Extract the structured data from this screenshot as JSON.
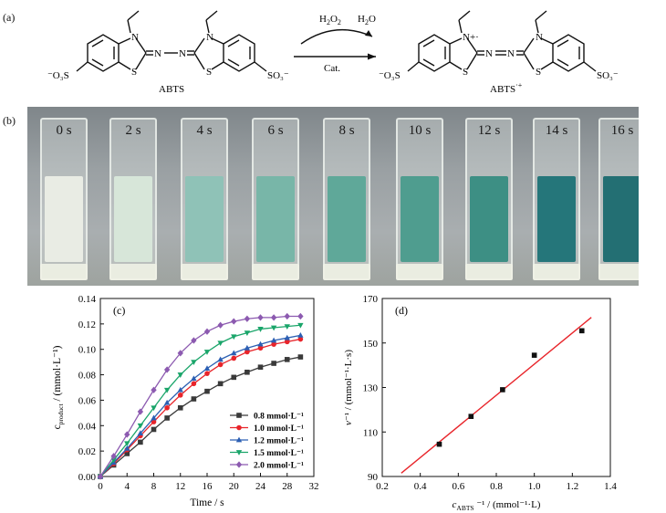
{
  "panels": {
    "a": "(a)",
    "b": "(b)",
    "c": "(c)",
    "d": "(d)"
  },
  "reaction": {
    "reactant_name": "ABTS",
    "product_name": "ABTS",
    "product_superscript": "·+",
    "reagent_in": "H",
    "reagent_in_sub": "2",
    "reagent_in_o": "O",
    "reagent_in_sub2": "2",
    "reagent_out": "H",
    "reagent_out_sub": "2",
    "reagent_out_o": "O",
    "catalyst": "Cat.",
    "so3_left_reactant": "⁻O₃S",
    "so3_right_reactant": "SO₃⁻",
    "so3_left_product": "⁻O₃S",
    "so3_right_product": "SO₃⁻",
    "atoms": {
      "n": "N",
      "s": "S",
      "n_plus": "N+·"
    }
  },
  "photo": {
    "cuvettes": [
      {
        "time": "0 s",
        "color": "#e9ece4"
      },
      {
        "time": "2 s",
        "color": "#d7e6d9"
      },
      {
        "time": "4 s",
        "color": "#8fc2b7"
      },
      {
        "time": "6 s",
        "color": "#78b6a8"
      },
      {
        "time": "8 s",
        "color": "#5fa899"
      },
      {
        "time": "10 s",
        "color": "#4f9d8f"
      },
      {
        "time": "12 s",
        "color": "#3d8f84"
      },
      {
        "time": "14 s",
        "color": "#25767a"
      },
      {
        "time": "16 s",
        "color": "#236f73"
      }
    ]
  },
  "chart_data": [
    {
      "type": "line",
      "panel": "(c)",
      "xlabel": "Time / s",
      "ylabel": "c_product / (mmol·L⁻¹)",
      "ylabel_main": "c",
      "ylabel_sub": "product",
      "ylabel_rest": " / (mmol·L⁻¹)",
      "xlim": [
        0,
        32
      ],
      "ylim": [
        0,
        0.14
      ],
      "xticks": [
        0,
        4,
        8,
        12,
        16,
        20,
        24,
        28,
        32
      ],
      "yticks": [
        0.0,
        0.02,
        0.04,
        0.06,
        0.08,
        0.1,
        0.12,
        0.14
      ],
      "legend_placement": "center-right",
      "x": [
        0,
        2,
        4,
        6,
        8,
        10,
        12,
        14,
        16,
        18,
        20,
        22,
        24,
        26,
        28,
        30
      ],
      "series": [
        {
          "name": "0.8 mmol·L⁻¹",
          "color": "#3a3a3a",
          "marker": "square",
          "values": [
            0,
            0.009,
            0.018,
            0.027,
            0.037,
            0.046,
            0.054,
            0.061,
            0.067,
            0.073,
            0.078,
            0.082,
            0.086,
            0.089,
            0.092,
            0.094
          ]
        },
        {
          "name": "1.0 mmol·L⁻¹",
          "color": "#e8242a",
          "marker": "circle",
          "values": [
            0,
            0.01,
            0.021,
            0.032,
            0.043,
            0.054,
            0.064,
            0.073,
            0.081,
            0.088,
            0.093,
            0.098,
            0.101,
            0.104,
            0.106,
            0.108
          ]
        },
        {
          "name": "1.2 mmol·L⁻¹",
          "color": "#2c5fb3",
          "marker": "triangle-up",
          "values": [
            0,
            0.011,
            0.022,
            0.034,
            0.046,
            0.058,
            0.068,
            0.077,
            0.085,
            0.092,
            0.097,
            0.101,
            0.104,
            0.107,
            0.109,
            0.111
          ]
        },
        {
          "name": "1.5 mmol·L⁻¹",
          "color": "#1aa56a",
          "marker": "triangle-down",
          "values": [
            0,
            0.013,
            0.026,
            0.04,
            0.054,
            0.068,
            0.08,
            0.09,
            0.098,
            0.105,
            0.11,
            0.113,
            0.116,
            0.117,
            0.118,
            0.119
          ]
        },
        {
          "name": "2.0 mmol·L⁻¹",
          "color": "#8c5ab0",
          "marker": "diamond",
          "values": [
            0,
            0.016,
            0.033,
            0.051,
            0.068,
            0.084,
            0.097,
            0.107,
            0.114,
            0.119,
            0.122,
            0.124,
            0.125,
            0.125,
            0.126,
            0.126
          ]
        }
      ]
    },
    {
      "type": "scatter",
      "panel": "(d)",
      "xlabel": "c_ABTS⁻¹ / (mmol⁻¹·L)",
      "xlabel_main": "c",
      "xlabel_sub": "ABTS",
      "xlabel_rest": " ⁻¹ / (mmol⁻¹·L)",
      "ylabel": "v⁻¹ / (mmol⁻¹·L·s)",
      "ylabel_main": "v",
      "ylabel_rest": "⁻¹ / (mmol⁻¹·L·s)",
      "xlim": [
        0.2,
        1.4
      ],
      "ylim": [
        90,
        170
      ],
      "xticks": [
        0.2,
        0.4,
        0.6,
        0.8,
        1.0,
        1.2,
        1.4
      ],
      "xtick_labels": [
        "0.2",
        "0.4",
        "0.6",
        "0.8",
        "1.0",
        "1.2",
        "1.4"
      ],
      "yticks": [
        90,
        110,
        130,
        150,
        170
      ],
      "points": {
        "x": [
          0.5,
          0.667,
          0.833,
          1.0,
          1.25
        ],
        "y": [
          104.5,
          117,
          129,
          144.5,
          155.5
        ]
      },
      "point_color": "#111111",
      "fit": {
        "x": [
          0.3,
          1.3
        ],
        "y": [
          91.5,
          161.5
        ],
        "color": "#e8242a"
      }
    }
  ]
}
